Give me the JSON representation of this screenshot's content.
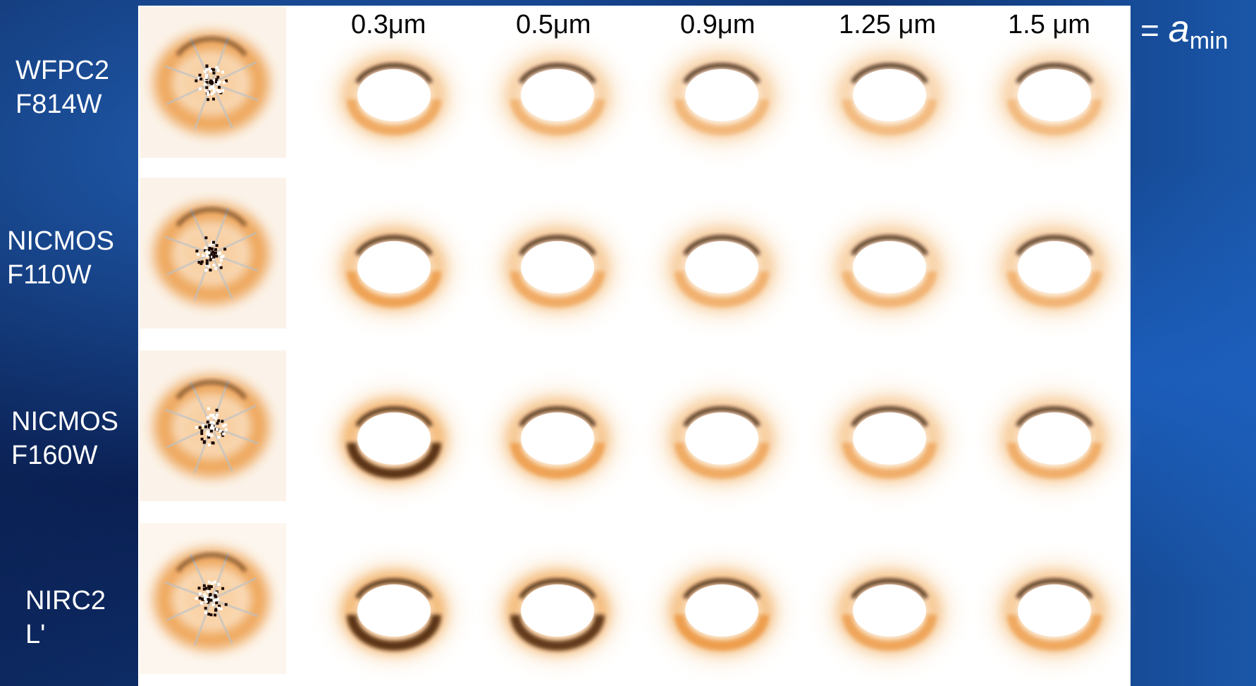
{
  "equals_label": "=",
  "variable_symbol": "a",
  "variable_subscript": "min",
  "columns": [
    {
      "label": "0.3μm",
      "value_um": 0.3
    },
    {
      "label": "0.5μm",
      "value_um": 0.5
    },
    {
      "label": "0.9μm",
      "value_um": 0.9
    },
    {
      "label": "1.25 μm",
      "value_um": 1.25
    },
    {
      "label": "1.5 μm",
      "value_um": 1.5
    }
  ],
  "rows": [
    {
      "line1": "WFPC2",
      "line2": "F814W"
    },
    {
      "line1": "NICMOS",
      "line2": "F110W"
    },
    {
      "line1": "NICMOS",
      "line2": "F160W"
    },
    {
      "line1": "NIRC2",
      "line2": "L'"
    }
  ],
  "colors": {
    "panel_bg": "#ffffff",
    "ring_light": "#f3b056",
    "ring_mid": "#e8891c",
    "ring_dark": "#2a0d00",
    "background_blue": "#123a80"
  }
}
